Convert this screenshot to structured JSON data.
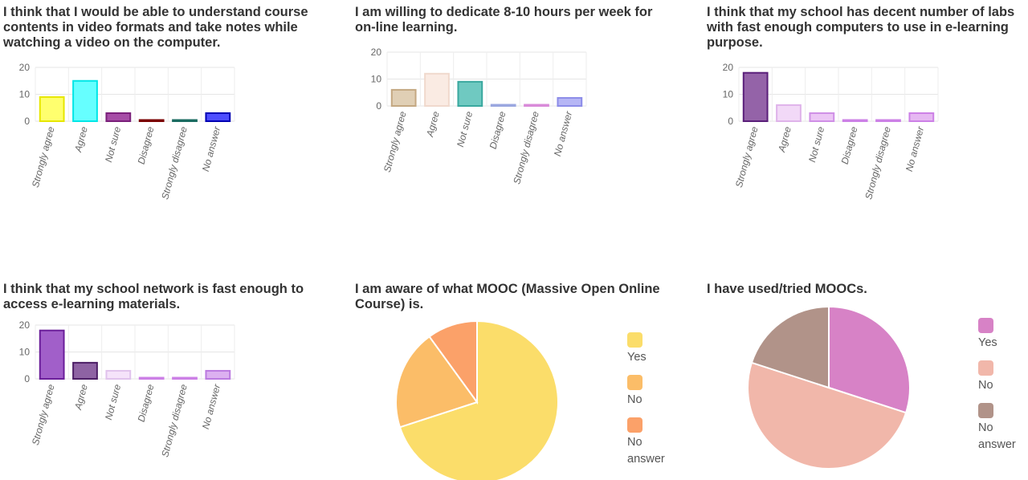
{
  "charts": [
    {
      "title_lines": [
        "I think that I would be able to understand course",
        "contents in video formats and take notes while",
        "watching a video on the computer."
      ],
      "chart_data": {
        "type": "bar",
        "categories": [
          "Strongly agree",
          "Agree",
          "Not sure",
          "Disagree",
          "Strongly disagree",
          "No answer"
        ],
        "values": [
          9,
          15,
          3,
          0,
          0,
          3
        ],
        "yticks": [
          "0",
          "10",
          "20"
        ],
        "ylim": [
          0,
          20
        ],
        "grid": true,
        "colors": [
          "#ffff6e",
          "#66ffff",
          "#a64ca6",
          "#a62020",
          "#2a9a8e",
          "#4d4dff"
        ],
        "strokes": [
          "#e6e600",
          "#00e6e6",
          "#7a1f7a",
          "#7a0000",
          "#1a6b60",
          "#0000b3"
        ]
      }
    },
    {
      "title_lines": [
        "I am willing to dedicate 8-10 hours per week for",
        "on-line learning."
      ],
      "chart_data": {
        "type": "bar",
        "categories": [
          "Strongly agree",
          "Agree",
          "Not sure",
          "Disagree",
          "Strongly disagree",
          "No answer"
        ],
        "values": [
          6,
          12,
          9,
          0,
          0,
          3
        ],
        "yticks": [
          "0",
          "10",
          "20"
        ],
        "ylim": [
          0,
          20
        ],
        "grid": true,
        "colors": [
          "#e0cfb5",
          "#faebe3",
          "#6fc9c1",
          "#c5cdf0",
          "#efc0ef",
          "#b6b6f5"
        ],
        "strokes": [
          "#c4a882",
          "#f0d9cd",
          "#3aa89f",
          "#9aa7e0",
          "#d98ad9",
          "#8c8ce8"
        ]
      }
    },
    {
      "title_lines": [
        "I think that my school has decent number of labs",
        "with fast enough computers to use in e-learning",
        "purpose."
      ],
      "chart_data": {
        "type": "bar",
        "categories": [
          "Strongly agree",
          "Agree",
          "Not sure",
          "Disagree",
          "Strongly disagree",
          "No answer"
        ],
        "values": [
          18,
          6,
          3,
          0,
          0,
          3
        ],
        "yticks": [
          "0",
          "10",
          "20"
        ],
        "ylim": [
          0,
          20
        ],
        "grid": true,
        "colors": [
          "#9463a8",
          "#f2d9f7",
          "#ecc6f5",
          "#e6b8f2",
          "#e6b8f2",
          "#e6b8f2"
        ],
        "strokes": [
          "#5a1f7a",
          "#dfb3ea",
          "#cf8fe6",
          "#cc80e6",
          "#cc80e6",
          "#cc80e6"
        ]
      }
    },
    {
      "title_lines": [
        "I think that my school network is fast enough to",
        "access e-learning materials."
      ],
      "chart_data": {
        "type": "bar",
        "categories": [
          "Strongly agree",
          "Agree",
          "Not sure",
          "Disagree",
          "Strongly disagree",
          "No answer"
        ],
        "values": [
          18,
          6,
          3,
          0,
          0,
          3
        ],
        "yticks": [
          "0",
          "10",
          "20"
        ],
        "ylim": [
          0,
          20
        ],
        "grid": true,
        "colors": [
          "#a15fc9",
          "#8e63a3",
          "#f5e3fa",
          "#e6b8f2",
          "#e6b8f2",
          "#dcb0f0"
        ],
        "strokes": [
          "#6b1f9a",
          "#4d1f66",
          "#e0c2ec",
          "#cc80e6",
          "#cc80e6",
          "#bb7ae0"
        ]
      }
    },
    {
      "title_lines": [
        "I am aware of what MOOC (Massive Open Online",
        "Course) is."
      ],
      "chart_data": {
        "type": "pie",
        "labels": [
          "Yes",
          "No",
          "No answer"
        ],
        "values": [
          70,
          20,
          10
        ],
        "colors": [
          "#fbdd6a",
          "#fbbd68",
          "#fba169"
        ],
        "legend_position": "right"
      }
    },
    {
      "title_lines": [
        "I have used/tried MOOCs."
      ],
      "chart_data": {
        "type": "pie",
        "labels": [
          "Yes",
          "No",
          "No answer"
        ],
        "values": [
          30,
          50,
          20
        ],
        "colors": [
          "#d782c6",
          "#f1b7aa",
          "#b19389"
        ],
        "legend_position": "right"
      }
    }
  ]
}
